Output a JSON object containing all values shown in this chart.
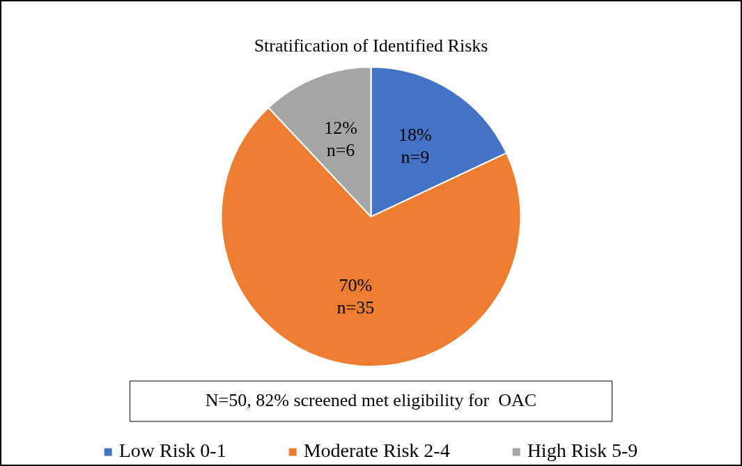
{
  "chart_data": {
    "type": "pie",
    "title": "Stratification of Identified Risks",
    "categories": [
      "Low Risk 0-1",
      "Moderate Risk 2-4",
      "High Risk 5-9"
    ],
    "values": [
      9,
      35,
      6
    ],
    "value_labels": [
      "18%\nn=9",
      "70%\nn=35",
      "12%\nn=6"
    ],
    "colors": [
      "#4472c4",
      "#ed7d31",
      "#a5a5a5"
    ],
    "annotations": [
      "N=50, 82% screened met eligibility for  OAC"
    ],
    "legend": "bottom"
  }
}
